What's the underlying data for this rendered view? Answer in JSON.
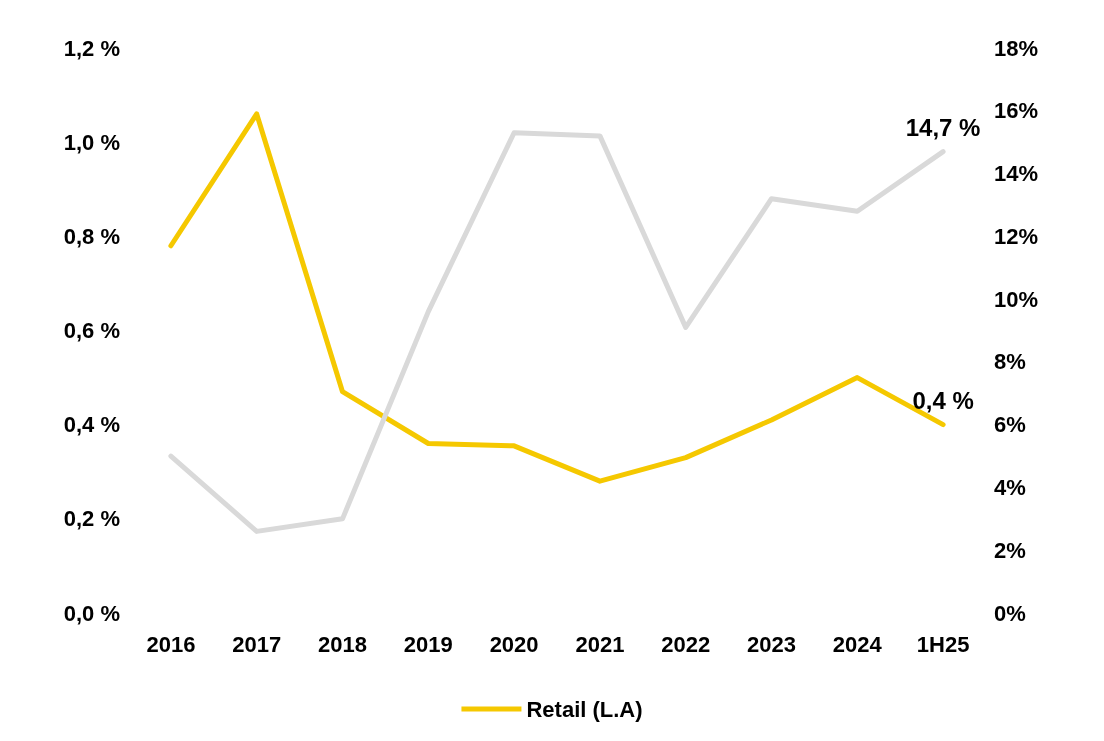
{
  "chart_data": {
    "type": "line",
    "categories": [
      "2016",
      "2017",
      "2018",
      "2019",
      "2020",
      "2021",
      "2022",
      "2023",
      "2024",
      "1H25"
    ],
    "series": [
      {
        "name": "Retail (L.A)",
        "color": "#f5c800",
        "values": [
          0.78,
          1.06,
          0.47,
          0.36,
          0.355,
          0.28,
          0.33,
          0.41,
          0.5,
          0.4
        ],
        "value_labels": [
          null,
          null,
          null,
          null,
          null,
          null,
          null,
          null,
          null,
          "0,4 %"
        ]
      },
      {
        "color": "#d9d9d9",
        "axis": "y2",
        "values": [
          5.0,
          2.6,
          3.0,
          9.6,
          15.3,
          15.2,
          9.1,
          13.2,
          12.8,
          14.7
        ],
        "value_labels": [
          null,
          null,
          null,
          null,
          null,
          null,
          null,
          null,
          null,
          "14,7 %"
        ]
      }
    ],
    "ylim": [
      0,
      1.2
    ],
    "yticks": [
      {
        "value": 0,
        "label": "0,0 %"
      },
      {
        "value": 0.2,
        "label": "0,2 %"
      },
      {
        "value": 0.4,
        "label": "0,4 %"
      },
      {
        "value": 0.6,
        "label": "0,6 %"
      },
      {
        "value": 0.8,
        "label": "0,8 %"
      },
      {
        "value": 1.0,
        "label": "1,0 %"
      },
      {
        "value": 1.2,
        "label": "1,2 %"
      }
    ],
    "y2lim": [
      0,
      18
    ],
    "y2ticks": [
      {
        "value": 0,
        "label": "0%"
      },
      {
        "value": 2,
        "label": "2%"
      },
      {
        "value": 4,
        "label": "4%"
      },
      {
        "value": 6,
        "label": "6%"
      },
      {
        "value": 8,
        "label": "8%"
      },
      {
        "value": 10,
        "label": "10%"
      },
      {
        "value": 12,
        "label": "12%"
      },
      {
        "value": 14,
        "label": "14%"
      },
      {
        "value": 16,
        "label": "16%"
      },
      {
        "value": 18,
        "label": "18%"
      }
    ],
    "grid": false,
    "legend": "bottom",
    "marker": "none",
    "line_style": "solid"
  }
}
